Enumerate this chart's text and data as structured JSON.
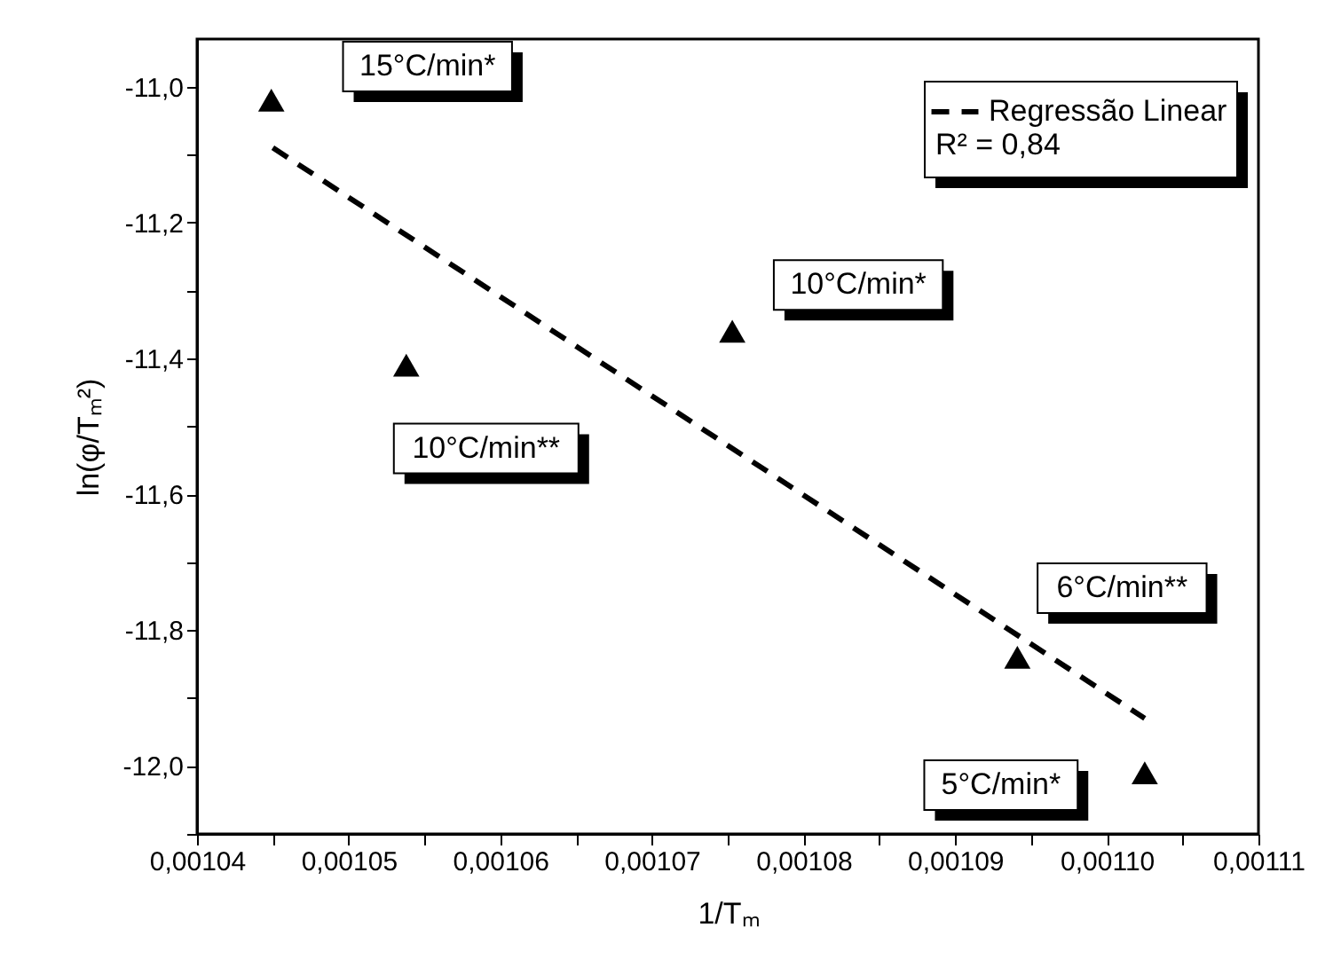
{
  "chart_data": {
    "type": "scatter",
    "xlabel": "1/Tₘ",
    "ylabel": "ln(φ/Tₘ²)",
    "xlim": [
      0.00104,
      0.00111
    ],
    "ylim": [
      -12.1,
      -10.93
    ],
    "xticks": [
      {
        "value": 0.00104,
        "label": "0,00104"
      },
      {
        "value": 0.001045,
        "label": null
      },
      {
        "value": 0.00105,
        "label": "0,00105"
      },
      {
        "value": 0.001055,
        "label": null
      },
      {
        "value": 0.00106,
        "label": "0,00106"
      },
      {
        "value": 0.001065,
        "label": null
      },
      {
        "value": 0.00107,
        "label": "0,00107"
      },
      {
        "value": 0.001075,
        "label": null
      },
      {
        "value": 0.00108,
        "label": "0,00108"
      },
      {
        "value": 0.001085,
        "label": null
      },
      {
        "value": 0.00109,
        "label": "0,00109"
      },
      {
        "value": 0.001095,
        "label": null
      },
      {
        "value": 0.0011,
        "label": "0,00110"
      },
      {
        "value": 0.001105,
        "label": null
      },
      {
        "value": 0.00111,
        "label": "0,00111"
      }
    ],
    "yticks": [
      {
        "value": -12.1,
        "label": null
      },
      {
        "value": -12.0,
        "label": "-12,0"
      },
      {
        "value": -11.9,
        "label": null
      },
      {
        "value": -11.8,
        "label": "-11,8"
      },
      {
        "value": -11.7,
        "label": null
      },
      {
        "value": -11.6,
        "label": "-11,6"
      },
      {
        "value": -11.5,
        "label": null
      },
      {
        "value": -11.4,
        "label": "-11,4"
      },
      {
        "value": -11.3,
        "label": null
      },
      {
        "value": -11.2,
        "label": "-11,2"
      },
      {
        "value": -11.1,
        "label": null
      },
      {
        "value": -11.0,
        "label": "-11,0"
      }
    ],
    "legend": "top right",
    "series": [
      {
        "color": "#000000",
        "marker": "triangle",
        "x": [
          0.0010449,
          0.0010538,
          0.0010753,
          0.0010941,
          0.0011025
        ],
        "values": [
          -11.02,
          -11.41,
          -11.36,
          -11.84,
          -12.01
        ]
      },
      {
        "type": "line",
        "name": "Regressão Linear",
        "color": "#000000",
        "line_style": "dashed",
        "x": [
          0.001045,
          0.0011025
        ],
        "values": [
          -11.09,
          -11.93
        ]
      }
    ],
    "annotations": [
      {
        "text": "15°C/min*",
        "x": 0.0010449,
        "y": -11.02
      },
      {
        "text": "10°C/min**",
        "x": 0.0010538,
        "y": -11.41
      },
      {
        "text": "10°C/min*",
        "x": 0.0010753,
        "y": -11.36
      },
      {
        "text": "6°C/min**",
        "x": 0.0010941,
        "y": -11.84
      },
      {
        "text": "5°C/min*",
        "x": 0.0011025,
        "y": -12.01
      },
      "R² = 0,84"
    ]
  }
}
